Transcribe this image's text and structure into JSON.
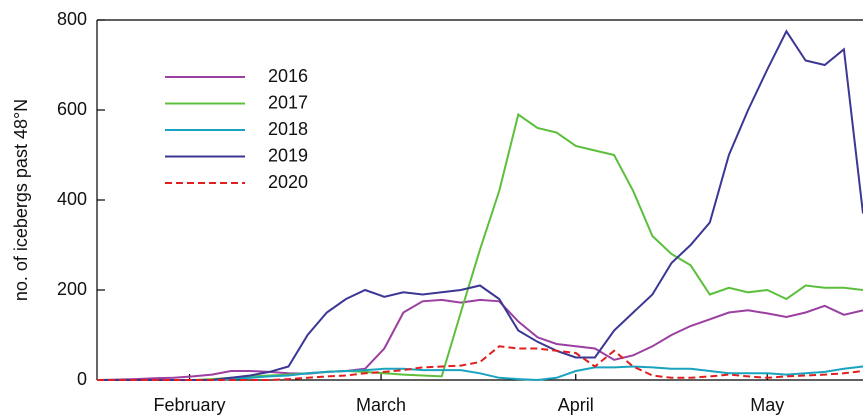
{
  "chart_data": {
    "type": "line",
    "y_label": "no. of icebergs past 48°N",
    "x": [
      0,
      3,
      6,
      9,
      12,
      15,
      18,
      21,
      24,
      27,
      30,
      33,
      36,
      39,
      42,
      45,
      48,
      51,
      54,
      57,
      60,
      63,
      66,
      69,
      72,
      75,
      78,
      81,
      84,
      87,
      90,
      93,
      96,
      99,
      102,
      105,
      108,
      111,
      114,
      117,
      120
    ],
    "xlim": [
      0,
      120
    ],
    "xticks": [
      {
        "value": 14.5,
        "label": "February"
      },
      {
        "value": 44.5,
        "label": "March"
      },
      {
        "value": 75,
        "label": "April"
      },
      {
        "value": 105,
        "label": "May"
      }
    ],
    "ylim": [
      0,
      800
    ],
    "yticks": [
      0,
      200,
      400,
      600,
      800
    ],
    "legend": "upper left",
    "series": [
      {
        "name": "2016",
        "color": "#9b3fa0",
        "linestyle": "solid",
        "values": [
          0,
          1,
          2,
          4,
          5,
          8,
          12,
          20,
          20,
          18,
          15,
          14,
          18,
          20,
          25,
          70,
          150,
          175,
          178,
          172,
          178,
          175,
          130,
          95,
          80,
          75,
          70,
          45,
          55,
          75,
          100,
          120,
          135,
          150,
          155,
          148,
          140,
          150,
          165,
          145,
          155
        ]
      },
      {
        "name": "2017",
        "color": "#5cbf3c",
        "linestyle": "solid",
        "values": [
          0,
          0,
          0,
          0,
          0,
          0,
          2,
          5,
          8,
          10,
          12,
          15,
          18,
          20,
          18,
          15,
          12,
          10,
          8,
          150,
          290,
          420,
          590,
          560,
          550,
          520,
          510,
          500,
          420,
          320,
          280,
          255,
          190,
          205,
          195,
          200,
          180,
          210,
          205,
          205,
          200
        ]
      },
      {
        "name": "2018",
        "color": "#1aa3c0",
        "linestyle": "solid",
        "values": [
          0,
          0,
          0,
          0,
          0,
          0,
          0,
          2,
          5,
          8,
          10,
          15,
          18,
          20,
          22,
          25,
          25,
          22,
          22,
          22,
          15,
          5,
          2,
          0,
          5,
          20,
          28,
          28,
          30,
          28,
          25,
          25,
          20,
          15,
          15,
          15,
          12,
          15,
          18,
          25,
          30
        ]
      },
      {
        "name": "2019",
        "color": "#3b3794",
        "linestyle": "solid",
        "values": [
          0,
          0,
          0,
          0,
          0,
          0,
          0,
          5,
          10,
          18,
          30,
          100,
          150,
          180,
          200,
          185,
          195,
          190,
          195,
          200,
          210,
          180,
          110,
          85,
          65,
          50,
          50,
          110,
          150,
          190,
          260,
          300,
          350,
          500,
          600,
          690,
          775,
          710,
          700,
          735,
          370
        ]
      },
      {
        "name": "2020",
        "color": "#e02020",
        "linestyle": "dashed",
        "values": [
          0,
          0,
          0,
          0,
          0,
          0,
          0,
          0,
          0,
          0,
          2,
          5,
          8,
          10,
          15,
          18,
          22,
          28,
          30,
          32,
          40,
          75,
          70,
          70,
          65,
          60,
          30,
          65,
          30,
          10,
          5,
          5,
          8,
          12,
          8,
          5,
          8,
          10,
          12,
          15,
          20
        ]
      }
    ]
  }
}
